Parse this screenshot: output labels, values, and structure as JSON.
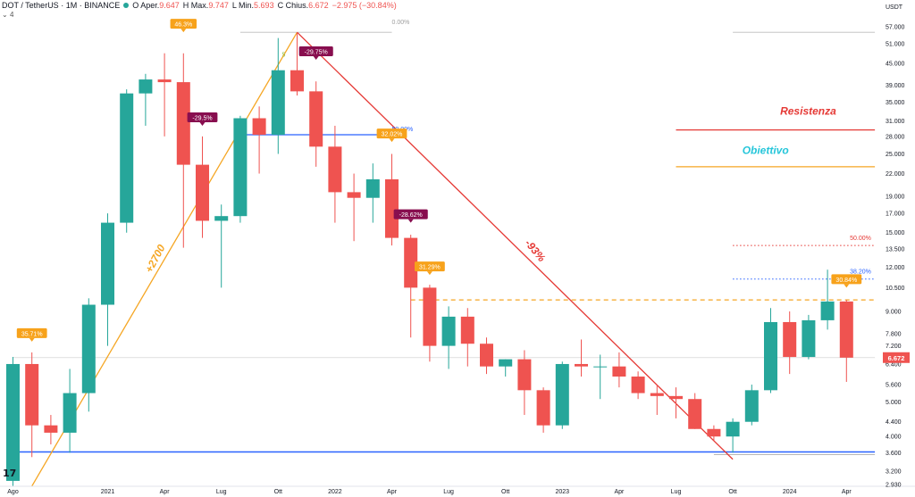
{
  "header": {
    "symbol": "DOT / TetherUS · 1M · BINANCE",
    "open_label": "O",
    "open_key": "Aper.",
    "open_val": "9.647",
    "high_label": "H",
    "high_key": "Max.",
    "high_val": "9.747",
    "low_label": "L",
    "low_key": "Min.",
    "low_val": "5.693",
    "close_label": "C",
    "close_key": "Chius.",
    "close_val": "6.672",
    "change": "−2.975 (−30.84%)",
    "indicator_count": "4",
    "status_color": "#26a69a"
  },
  "colors": {
    "up": "#26a69a",
    "down": "#ef5350",
    "orange": "#f7a21b",
    "maroon": "#880e4f",
    "blue": "#2962ff",
    "red_line": "#e64545",
    "orange_line": "#f5a623",
    "price_tag": "#ef5350"
  },
  "chart_data": {
    "type": "candlestick",
    "currency_label": "USDT",
    "y_scale": "log",
    "ylim": [
      2.93,
      57
    ],
    "y_ticks": [
      "57.000",
      "51.000",
      "45.000",
      "39.000",
      "35.000",
      "31.000",
      "28.000",
      "25.000",
      "22.000",
      "19.000",
      "17.000",
      "15.000",
      "13.500",
      "12.000",
      "10.500",
      "9.000",
      "7.800",
      "7.200",
      "6.400",
      "5.600",
      "5.000",
      "4.400",
      "4.000",
      "3.600",
      "3.200",
      "2.930"
    ],
    "x_labels": [
      {
        "label": "Ago",
        "i": 0
      },
      {
        "label": "2021",
        "i": 5
      },
      {
        "label": "Apr",
        "i": 8
      },
      {
        "label": "Lug",
        "i": 11
      },
      {
        "label": "Ott",
        "i": 14
      },
      {
        "label": "2022",
        "i": 17
      },
      {
        "label": "Apr",
        "i": 20
      },
      {
        "label": "Lug",
        "i": 23
      },
      {
        "label": "Ott",
        "i": 26
      },
      {
        "label": "2023",
        "i": 29
      },
      {
        "label": "Apr",
        "i": 32
      },
      {
        "label": "Lug",
        "i": 35
      },
      {
        "label": "Ott",
        "i": 38
      },
      {
        "label": "2024",
        "i": 41
      },
      {
        "label": "Apr",
        "i": 44
      }
    ],
    "candles": [
      {
        "o": 3.0,
        "h": 6.7,
        "l": 2.9,
        "c": 6.4
      },
      {
        "o": 6.4,
        "h": 6.9,
        "l": 3.5,
        "c": 4.3
      },
      {
        "o": 4.3,
        "h": 4.6,
        "l": 3.8,
        "c": 4.1
      },
      {
        "o": 4.1,
        "h": 6.2,
        "l": 3.6,
        "c": 5.3
      },
      {
        "o": 5.3,
        "h": 9.8,
        "l": 4.7,
        "c": 9.4
      },
      {
        "o": 9.4,
        "h": 17.0,
        "l": 7.2,
        "c": 16.0
      },
      {
        "o": 16.0,
        "h": 38.0,
        "l": 15.0,
        "c": 37.0
      },
      {
        "o": 37.0,
        "h": 42.0,
        "l": 30.0,
        "c": 40.5
      },
      {
        "o": 40.5,
        "h": 48.0,
        "l": 28.0,
        "c": 39.8
      },
      {
        "o": 39.8,
        "h": 48.0,
        "l": 13.6,
        "c": 23.3
      },
      {
        "o": 23.3,
        "h": 28.0,
        "l": 14.5,
        "c": 16.2
      },
      {
        "o": 16.2,
        "h": 18.0,
        "l": 10.5,
        "c": 16.7
      },
      {
        "o": 16.7,
        "h": 32.0,
        "l": 16.0,
        "c": 31.5
      },
      {
        "o": 31.5,
        "h": 34.0,
        "l": 22.0,
        "c": 28.3
      },
      {
        "o": 28.3,
        "h": 53.0,
        "l": 25.0,
        "c": 43.0
      },
      {
        "o": 43.0,
        "h": 55.0,
        "l": 36.5,
        "c": 37.5
      },
      {
        "o": 37.5,
        "h": 40.0,
        "l": 23.0,
        "c": 26.2
      },
      {
        "o": 26.2,
        "h": 30.0,
        "l": 16.0,
        "c": 19.5
      },
      {
        "o": 19.5,
        "h": 22.0,
        "l": 14.2,
        "c": 18.8
      },
      {
        "o": 18.8,
        "h": 23.5,
        "l": 16.0,
        "c": 21.2
      },
      {
        "o": 21.2,
        "h": 25.0,
        "l": 13.8,
        "c": 14.5
      },
      {
        "o": 14.5,
        "h": 14.8,
        "l": 7.6,
        "c": 10.5
      },
      {
        "o": 10.5,
        "h": 10.7,
        "l": 6.5,
        "c": 7.2
      },
      {
        "o": 7.2,
        "h": 9.3,
        "l": 6.2,
        "c": 8.7
      },
      {
        "o": 8.7,
        "h": 9.2,
        "l": 6.3,
        "c": 7.3
      },
      {
        "o": 7.3,
        "h": 7.6,
        "l": 6.0,
        "c": 6.3
      },
      {
        "o": 6.3,
        "h": 6.6,
        "l": 5.9,
        "c": 6.6
      },
      {
        "o": 6.6,
        "h": 7.0,
        "l": 4.6,
        "c": 5.4
      },
      {
        "o": 5.4,
        "h": 5.5,
        "l": 4.1,
        "c": 4.3
      },
      {
        "o": 4.3,
        "h": 6.5,
        "l": 4.2,
        "c": 6.4
      },
      {
        "o": 6.4,
        "h": 7.5,
        "l": 5.9,
        "c": 6.3
      },
      {
        "o": 6.3,
        "h": 6.8,
        "l": 5.1,
        "c": 6.3
      },
      {
        "o": 6.3,
        "h": 6.9,
        "l": 5.5,
        "c": 5.9
      },
      {
        "o": 5.9,
        "h": 6.1,
        "l": 5.1,
        "c": 5.3
      },
      {
        "o": 5.3,
        "h": 5.6,
        "l": 4.6,
        "c": 5.2
      },
      {
        "o": 5.2,
        "h": 5.5,
        "l": 4.5,
        "c": 5.1
      },
      {
        "o": 5.1,
        "h": 5.3,
        "l": 4.2,
        "c": 4.2
      },
      {
        "o": 4.2,
        "h": 4.3,
        "l": 3.9,
        "c": 4.0
      },
      {
        "o": 4.0,
        "h": 4.5,
        "l": 3.6,
        "c": 4.4
      },
      {
        "o": 4.4,
        "h": 5.6,
        "l": 4.3,
        "c": 5.4
      },
      {
        "o": 5.4,
        "h": 9.2,
        "l": 5.3,
        "c": 8.4
      },
      {
        "o": 8.4,
        "h": 9.0,
        "l": 6.0,
        "c": 6.7
      },
      {
        "o": 6.7,
        "h": 8.8,
        "l": 6.6,
        "c": 8.5
      },
      {
        "o": 8.5,
        "h": 11.8,
        "l": 8.0,
        "c": 9.6
      },
      {
        "o": 9.6,
        "h": 9.7,
        "l": 5.7,
        "c": 6.67
      }
    ],
    "current_price": {
      "value": 6.672,
      "label": "6.672"
    },
    "lines": [
      {
        "name": "support",
        "price": 3.62,
        "from": 0,
        "to": 45.5,
        "color": "#2962ff",
        "style": "solid",
        "width": 1.5
      },
      {
        "name": "support-2",
        "price": 3.56,
        "from": 37,
        "to": 45.5,
        "color": "#9e9e9e",
        "style": "solid",
        "width": 0.8
      },
      {
        "name": "pivot",
        "price": 28.3,
        "from": 12,
        "to": 20,
        "color": "#2962ff",
        "style": "solid",
        "width": 1.2
      },
      {
        "name": "top",
        "price": 55,
        "from": 12,
        "to": 20,
        "color": "#bdbdbd",
        "style": "solid",
        "width": 0.8
      },
      {
        "name": "top-right",
        "price": 55,
        "from": 38,
        "to": 45.5,
        "color": "#bdbdbd",
        "style": "solid",
        "width": 0.8
      },
      {
        "name": "current",
        "price": 6.672,
        "from": 0,
        "to": 45.5,
        "color": "#cccccc",
        "style": "solid",
        "width": 0.6
      },
      {
        "name": "resistenza",
        "price": 29.2,
        "from": 35,
        "to": 45.5,
        "color": "#e53935",
        "style": "solid",
        "width": 1.2
      },
      {
        "name": "obiettivo",
        "price": 23.0,
        "from": 35,
        "to": 45.5,
        "color": "#f5a623",
        "style": "solid",
        "width": 1.2
      },
      {
        "name": "fib-50",
        "price": 13.8,
        "from": 38,
        "to": 45.5,
        "color": "#e53935",
        "style": "dotted",
        "width": 1
      },
      {
        "name": "fib-382",
        "price": 11.1,
        "from": 38,
        "to": 45.5,
        "color": "#2962ff",
        "style": "dotted",
        "width": 1
      },
      {
        "name": "dash-orange",
        "price": 9.7,
        "from": 21,
        "to": 45.5,
        "color": "#f5a623",
        "style": "dashed",
        "width": 1.2
      }
    ],
    "trendlines": [
      {
        "name": "up-trend",
        "i1": 1,
        "p1": 2.9,
        "i2": 15,
        "p2": 55,
        "color": "#f5a623"
      },
      {
        "name": "down-trend",
        "i1": 15,
        "p1": 55,
        "i2": 38,
        "p2": 3.45,
        "color": "#e53935"
      }
    ],
    "line_labels": [
      {
        "text": "0.00%",
        "i": 20,
        "price": 58,
        "color": "#9e9e9e"
      },
      {
        "text": "50.00%",
        "i": 20,
        "price": 29,
        "color": "#2962ff"
      },
      {
        "text": "50.00%",
        "i": 45.3,
        "price": 14.3,
        "color": "#e53935",
        "anchor": "end"
      },
      {
        "text": "38.20%",
        "i": 45.3,
        "price": 11.5,
        "color": "#2962ff",
        "anchor": "end"
      },
      {
        "text": "Resistenza",
        "i": 40.5,
        "price": 32.2,
        "color": "#e53935",
        "big": true
      },
      {
        "text": "Obiettivo",
        "i": 38.5,
        "price": 25.0,
        "color": "#26c6da",
        "big": true
      },
      {
        "text": "+2700",
        "i": 7.3,
        "price": 11.5,
        "color": "#f5a623",
        "big": true,
        "rotate": -62
      },
      {
        "text": "-93%",
        "i": 27,
        "price": 14.0,
        "color": "#e53935",
        "big": true,
        "rotate": 50
      },
      {
        "text": "5",
        "i": 14.2,
        "price": 47,
        "color": "#8bc34a"
      }
    ],
    "badges": [
      {
        "text": "35.71%",
        "i": 1,
        "price": 7.4,
        "bg": "#f7a21b",
        "dir": "down"
      },
      {
        "text": "46.3%",
        "i": 9,
        "price": 55,
        "bg": "#f7a21b",
        "dir": "down"
      },
      {
        "text": "-29.5%",
        "i": 10,
        "price": 30,
        "bg": "#880e4f",
        "dir": "down"
      },
      {
        "text": "-29.75%",
        "i": 16,
        "price": 46,
        "bg": "#880e4f",
        "dir": "down"
      },
      {
        "text": "32.02%",
        "i": 20,
        "price": 27,
        "bg": "#f7a21b",
        "dir": "down"
      },
      {
        "text": "-28.62%",
        "i": 21,
        "price": 16,
        "bg": "#880e4f",
        "dir": "down"
      },
      {
        "text": "31.29%",
        "i": 22,
        "price": 11.4,
        "bg": "#f7a21b",
        "dir": "down"
      },
      {
        "text": "30.84%",
        "i": 44,
        "price": 10.5,
        "bg": "#f7a21b",
        "dir": "down"
      }
    ]
  }
}
